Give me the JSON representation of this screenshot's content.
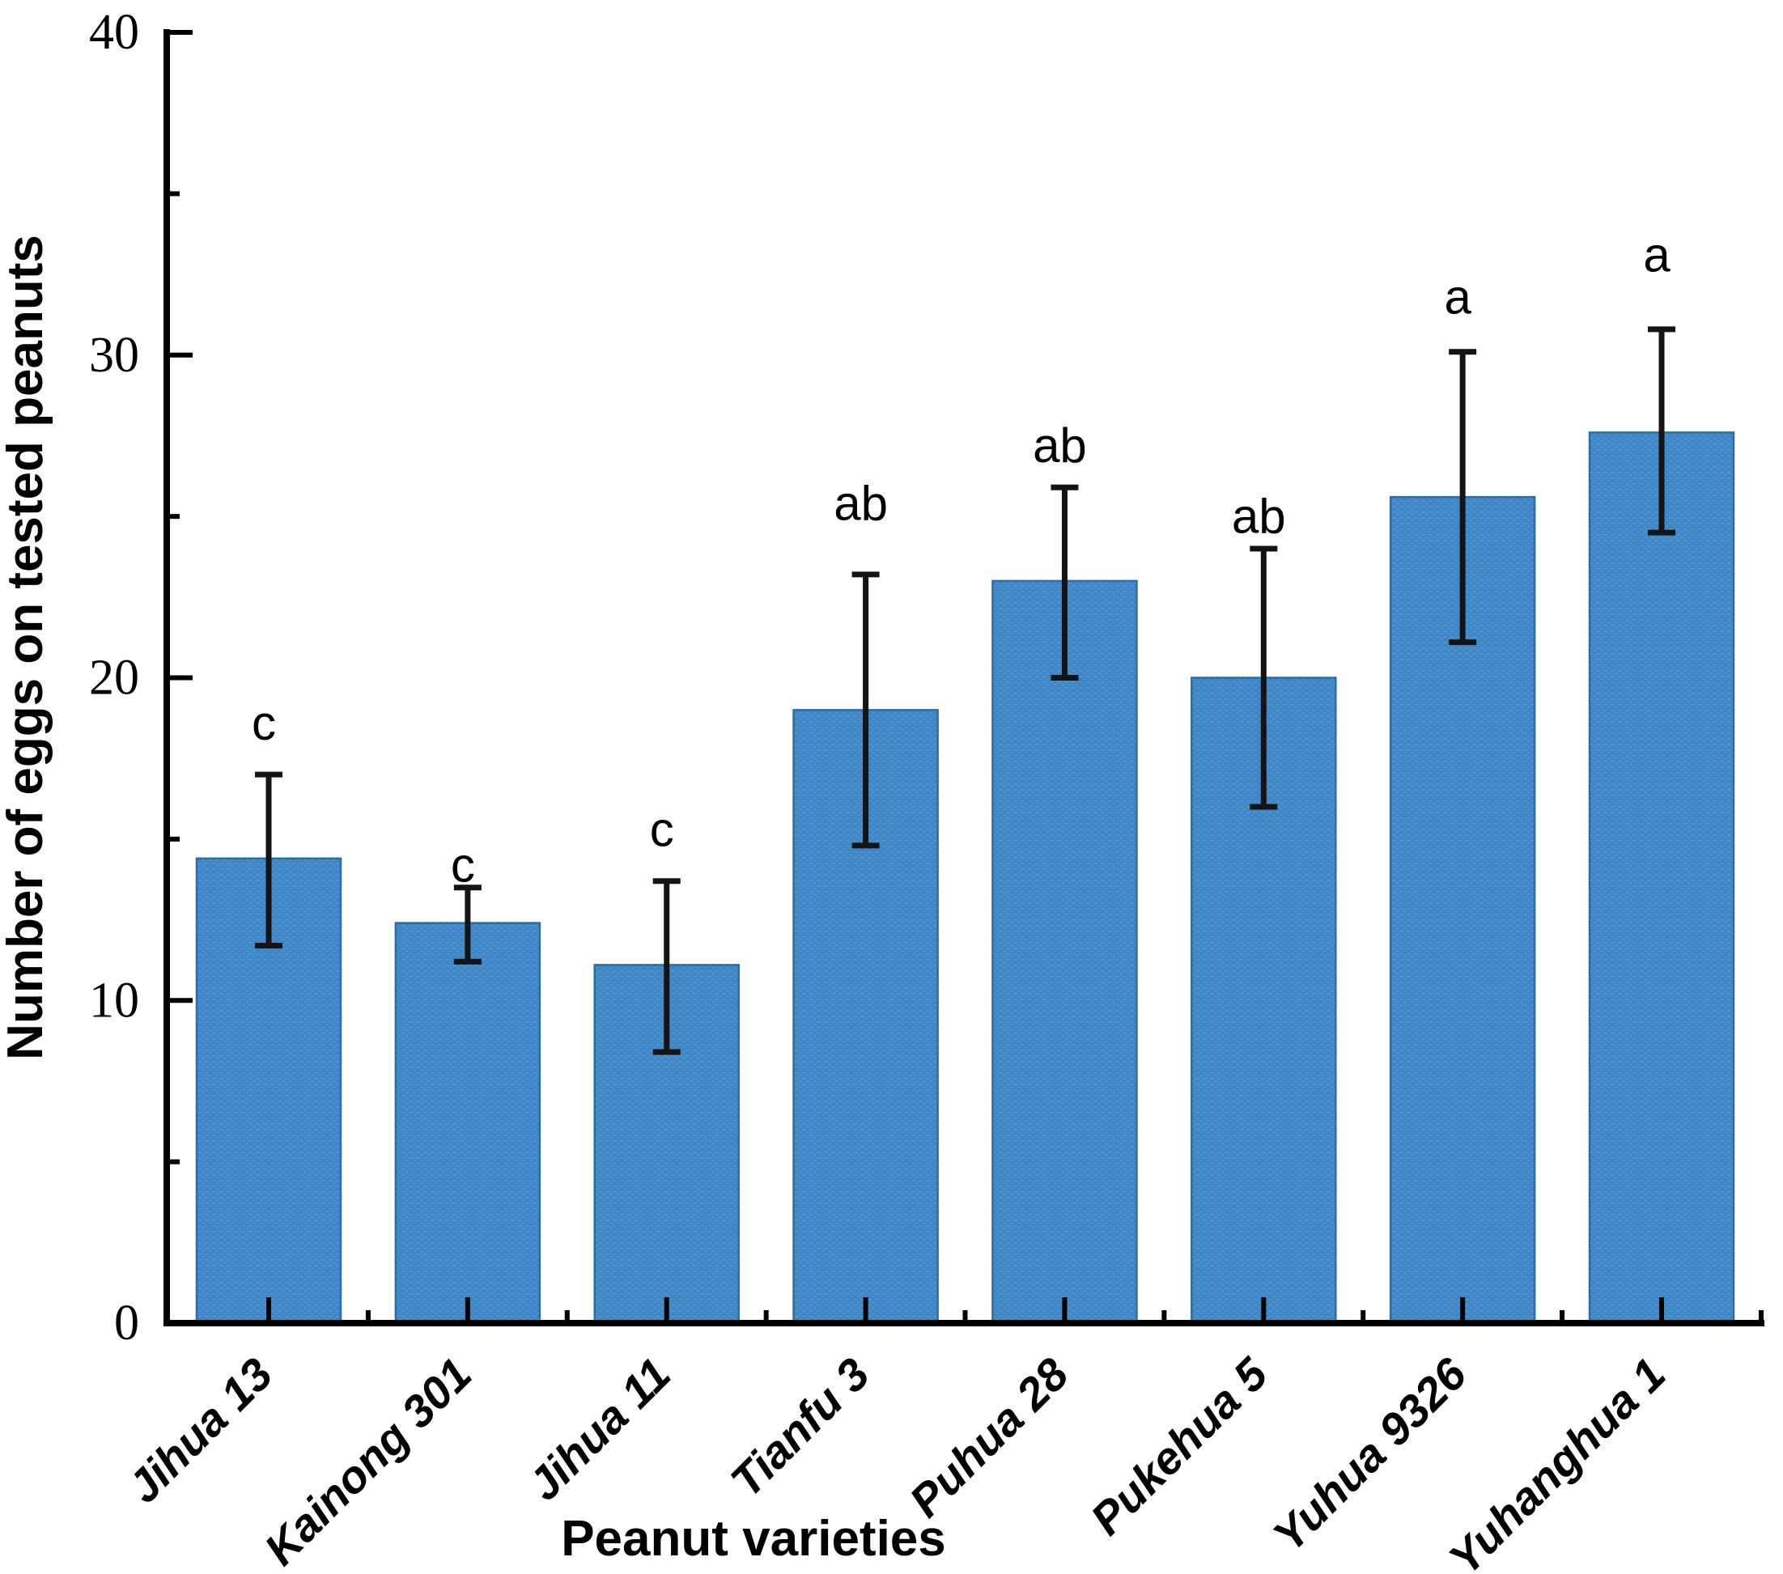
{
  "chart_data": {
    "type": "bar",
    "title": "",
    "xlabel": "Peanut varieties",
    "ylabel": "Number of eggs  on tested peanuts",
    "categories": [
      "Jihua 13",
      "Kainong 301",
      "Jihua 11",
      "Tianfu 3",
      "Puhua 28",
      "Pukehua 5",
      "Yuhua 9326",
      "Yuhanghua 1"
    ],
    "values": [
      14.4,
      12.4,
      11.1,
      19.0,
      23.0,
      20.0,
      25.6,
      27.6
    ],
    "error_caps": {
      "upper": [
        17.0,
        13.5,
        13.7,
        23.2,
        25.9,
        24.0,
        30.1,
        30.8
      ],
      "lower": [
        11.7,
        11.2,
        8.4,
        14.8,
        20.0,
        16.0,
        21.1,
        24.5
      ]
    },
    "sig_letters": [
      "c",
      "c",
      "c",
      "ab",
      "ab",
      "ab",
      "a",
      "a"
    ],
    "sig_letter_y_values": [
      18.6,
      14.2,
      15.3,
      25.4,
      27.2,
      25.0,
      31.8,
      33.1
    ],
    "ylim": [
      0,
      40
    ],
    "yticks_major": [
      0,
      10,
      20,
      30,
      40
    ],
    "ytick_labels": [
      "0",
      "10",
      "20",
      "30",
      "40"
    ],
    "yticks_minor": [
      5,
      15,
      25,
      35
    ],
    "grid": false,
    "legend": null,
    "bar_color": "#3E86C6",
    "bar_pattern_color": "#5FA0D6",
    "bar_edge_color": "#2B6CA9",
    "error_bar_color": "#141414",
    "axis_color": "#000000"
  }
}
